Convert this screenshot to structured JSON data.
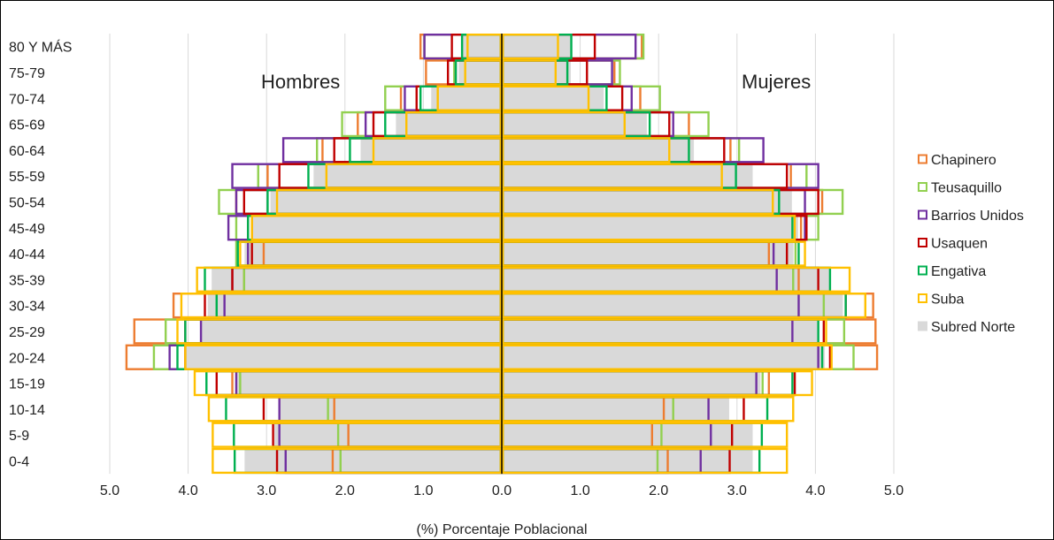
{
  "chart_data": {
    "type": "bar",
    "subtype": "population-pyramid",
    "title": "",
    "xlabel": "(%) Porcentaje Poblacional",
    "ylabel": "",
    "xlim": [
      -5.0,
      5.0
    ],
    "xticks": [
      -5,
      -4,
      -3,
      -2,
      -1,
      0,
      1,
      2,
      3,
      4,
      5
    ],
    "xtick_labels": [
      "5.0",
      "4.0",
      "3.0",
      "2.0",
      "1.0",
      "0.0",
      "1.0",
      "2.0",
      "3.0",
      "4.0",
      "5.0"
    ],
    "grid": true,
    "legend_position": "right",
    "side_labels": {
      "left": "Hombres",
      "right": "Mujeres"
    },
    "categories": [
      "80 Y MÁS",
      "75-79",
      "70-74",
      "65-69",
      "60-64",
      "55-59",
      "50-54",
      "45-49",
      "40-44",
      "35-39",
      "30-34",
      "25-29",
      "20-24",
      "15-19",
      "10-14",
      "5-9",
      "0-4"
    ],
    "series": [
      {
        "name": "Chapinero",
        "color": "#ED7D31",
        "style": "outline",
        "hombres": [
          1.05,
          0.98,
          1.3,
          1.85,
          2.3,
          3.0,
          3.4,
          3.2,
          3.05,
          3.3,
          4.2,
          4.7,
          4.8,
          3.45,
          2.15,
          1.97,
          2.17
        ],
        "mujeres": [
          1.8,
          1.45,
          1.78,
          2.4,
          2.93,
          3.7,
          4.1,
          3.83,
          3.42,
          3.8,
          4.75,
          4.78,
          4.8,
          3.42,
          2.08,
          1.93,
          2.13
        ]
      },
      {
        "name": "Teusaquillo",
        "color": "#92D050",
        "style": "outline",
        "hombres": [
          1.0,
          0.62,
          1.5,
          2.05,
          2.37,
          3.12,
          3.62,
          3.4,
          3.4,
          3.3,
          3.65,
          4.3,
          4.45,
          3.35,
          2.23,
          2.1,
          2.07
        ],
        "mujeres": [
          1.82,
          1.52,
          2.03,
          2.65,
          3.04,
          3.9,
          4.36,
          4.05,
          3.76,
          3.73,
          4.12,
          4.38,
          4.5,
          3.34,
          2.2,
          2.05,
          2.0
        ]
      },
      {
        "name": "Barrios Unidos",
        "color": "#7030A0",
        "style": "outline",
        "hombres": [
          1.0,
          0.6,
          1.25,
          1.75,
          2.8,
          3.45,
          3.4,
          3.5,
          3.25,
          3.45,
          3.55,
          3.85,
          4.25,
          3.4,
          2.85,
          2.85,
          2.77
        ],
        "mujeres": [
          1.72,
          1.42,
          1.67,
          2.2,
          3.35,
          4.05,
          3.88,
          3.88,
          3.48,
          3.52,
          3.8,
          3.72,
          4.05,
          3.26,
          2.65,
          2.68,
          2.55
        ]
      },
      {
        "name": "Usaquen",
        "color": "#C00000",
        "style": "outline",
        "hombres": [
          0.65,
          0.7,
          1.1,
          1.65,
          2.15,
          2.85,
          3.3,
          3.25,
          3.2,
          3.45,
          3.8,
          4.05,
          4.05,
          3.65,
          3.05,
          2.93,
          2.88
        ],
        "mujeres": [
          1.2,
          1.1,
          1.55,
          2.15,
          2.85,
          3.65,
          4.05,
          3.9,
          3.65,
          4.05,
          4.4,
          4.12,
          4.2,
          3.75,
          3.1,
          2.95,
          2.92
        ]
      },
      {
        "name": "Engativa",
        "color": "#00B050",
        "style": "outline",
        "hombres": [
          0.52,
          0.6,
          1.05,
          1.5,
          1.95,
          2.48,
          3.0,
          3.25,
          3.38,
          3.8,
          3.65,
          4.05,
          4.15,
          3.78,
          3.53,
          3.43,
          3.42
        ],
        "mujeres": [
          0.9,
          0.85,
          1.35,
          1.9,
          2.4,
          3.0,
          3.55,
          3.72,
          3.8,
          4.2,
          4.4,
          4.05,
          4.1,
          3.72,
          3.4,
          3.33,
          3.3
        ]
      },
      {
        "name": "Suba",
        "color": "#FFC000",
        "style": "outline",
        "hombres": [
          0.45,
          0.48,
          0.83,
          1.23,
          1.65,
          2.25,
          2.88,
          3.2,
          3.35,
          3.9,
          4.1,
          4.15,
          4.05,
          3.93,
          3.75,
          3.7,
          3.7
        ],
        "mujeres": [
          0.73,
          0.7,
          1.12,
          1.58,
          2.15,
          2.82,
          3.47,
          3.75,
          3.88,
          4.45,
          4.65,
          4.15,
          4.22,
          3.97,
          3.73,
          3.65,
          3.65
        ]
      },
      {
        "name": "Subred Norte",
        "color": "#D9D9D9",
        "style": "filled",
        "hombres": [
          0.52,
          0.55,
          0.9,
          1.35,
          1.8,
          2.4,
          2.95,
          3.2,
          3.28,
          3.7,
          3.75,
          3.85,
          4.05,
          3.4,
          2.85,
          2.9,
          3.28
        ],
        "mujeres": [
          0.9,
          0.88,
          1.3,
          1.85,
          2.45,
          3.2,
          3.7,
          3.78,
          3.72,
          4.18,
          4.35,
          4.05,
          4.12,
          3.3,
          2.9,
          3.2,
          3.2
        ]
      }
    ]
  }
}
